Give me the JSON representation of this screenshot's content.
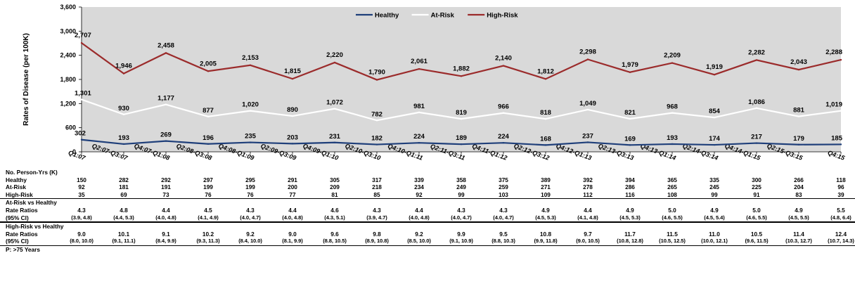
{
  "chart_data": {
    "type": "line",
    "ylabel": "Rates of Disease (per 100K)",
    "ylim": [
      0,
      3600
    ],
    "yticks": [
      "0",
      "600",
      "1,200",
      "1,800",
      "2,400",
      "3,000",
      "3,600"
    ],
    "grid": false,
    "legend_position": "top-center",
    "categories": [
      "Q1:07",
      "Q2:07-Q3:07",
      "Q4:07-Q1:08",
      "Q2:08-Q3:08",
      "Q4:08-Q1:09",
      "Q2:09-Q3:09",
      "Q4:09-Q1:10",
      "Q2:10-Q3:10",
      "Q4:10-Q1:11",
      "Q2:11-Q3:11",
      "Q4:11-Q1:12",
      "Q2:12-Q3:12",
      "Q4:12-Q1:13",
      "Q2:13-Q3:13",
      "Q4:13-Q1:14",
      "Q2:14-Q3:14",
      "Q4:14-Q1:15",
      "Q2:15-Q3:15",
      "Q4:15"
    ],
    "series": [
      {
        "name": "Healthy",
        "color": "#1f3f7a",
        "values": [
          302,
          193,
          269,
          196,
          235,
          203,
          231,
          182,
          224,
          189,
          224,
          168,
          237,
          169,
          193,
          174,
          217,
          179,
          185
        ]
      },
      {
        "name": "At-Risk",
        "color": "#ffffff",
        "values": [
          1301,
          930,
          1177,
          877,
          1020,
          890,
          1072,
          782,
          981,
          819,
          966,
          818,
          1049,
          821,
          968,
          854,
          1086,
          881,
          1019
        ]
      },
      {
        "name": "High-Risk",
        "color": "#9b2b2b",
        "values": [
          2707,
          1946,
          2458,
          2005,
          2153,
          1815,
          2220,
          1790,
          2061,
          1882,
          2140,
          1812,
          2298,
          1979,
          2209,
          1919,
          2282,
          2043,
          2288
        ]
      }
    ],
    "data_labels": {
      "Healthy": [
        "302",
        "193",
        "269",
        "196",
        "235",
        "203",
        "231",
        "182",
        "224",
        "189",
        "224",
        "168",
        "237",
        "169",
        "193",
        "174",
        "217",
        "179",
        "185"
      ],
      "At-Risk": [
        "1,301",
        "930",
        "1,177",
        "877",
        "1,020",
        "890",
        "1,072",
        "782",
        "981",
        "819",
        "966",
        "818",
        "1,049",
        "821",
        "968",
        "854",
        "1,086",
        "881",
        "1,019"
      ],
      "High-Risk": [
        "2,707",
        "1,946",
        "2,458",
        "2,005",
        "2,153",
        "1,815",
        "2,220",
        "1,790",
        "2,061",
        "1,882",
        "2,140",
        "1,812",
        "2,298",
        "1,979",
        "2,209",
        "1,919",
        "2,282",
        "2,043",
        "2,288"
      ]
    },
    "plot_background": "#d9d9d9"
  },
  "table": {
    "rows": [
      {
        "label": "No. Person-Yrs (K)",
        "cells": [],
        "style": "header"
      },
      {
        "label": "Healthy",
        "cells": [
          "150",
          "282",
          "292",
          "297",
          "295",
          "291",
          "305",
          "317",
          "339",
          "358",
          "375",
          "389",
          "392",
          "394",
          "365",
          "335",
          "300",
          "266",
          "118"
        ]
      },
      {
        "label": "At-Risk",
        "cells": [
          "92",
          "181",
          "191",
          "199",
          "199",
          "200",
          "209",
          "218",
          "234",
          "249",
          "259",
          "271",
          "278",
          "286",
          "265",
          "245",
          "225",
          "204",
          "96"
        ]
      },
      {
        "label": "High-Risk",
        "cells": [
          "35",
          "69",
          "73",
          "76",
          "76",
          "77",
          "81",
          "85",
          "92",
          "99",
          "103",
          "109",
          "112",
          "116",
          "108",
          "99",
          "91",
          "83",
          "39"
        ]
      },
      {
        "label": "At-Risk vs Healthy",
        "cells": [],
        "style": "section-top"
      },
      {
        "label": "Rate Ratios",
        "cells": [
          "4.3",
          "4.8",
          "4.4",
          "4.5",
          "4.3",
          "4.4",
          "4.6",
          "4.3",
          "4.4",
          "4.3",
          "4.3",
          "4.9",
          "4.4",
          "4.9",
          "5.0",
          "4.9",
          "5.0",
          "4.9",
          "5.5"
        ]
      },
      {
        "label": "(95% CI)",
        "cells": [
          "(3.9, 4.8)",
          "(4.4, 5.3)",
          "(4.0, 4.8)",
          "(4.1, 4.9)",
          "(4.0, 4.7)",
          "(4.0, 4.8)",
          "(4.3, 5.1)",
          "(3.9, 4.7)",
          "(4.0, 4.8)",
          "(4.0, 4.7)",
          "(4.0, 4.7)",
          "(4.5, 5.3)",
          "(4.1, 4.8)",
          "(4.5, 5.3)",
          "(4.6, 5.5)",
          "(4.5, 5.4)",
          "(4.6, 5.5)",
          "(4.5, 5.5)",
          "(4.8, 6.4)"
        ],
        "style": "ci-bottom"
      },
      {
        "label": "High-Risk vs Healthy",
        "cells": [],
        "style": "section-top"
      },
      {
        "label": "Rate Ratios",
        "cells": [
          "9.0",
          "10.1",
          "9.1",
          "10.2",
          "9.2",
          "9.0",
          "9.6",
          "9.8",
          "9.2",
          "9.9",
          "9.5",
          "10.8",
          "9.7",
          "11.7",
          "11.5",
          "11.0",
          "10.5",
          "11.4",
          "12.4"
        ]
      },
      {
        "label": "(95% CI)",
        "cells": [
          "(8.0, 10.0)",
          "(9.1, 11.1)",
          "(8.4, 9.9)",
          "(9.3, 11.3)",
          "(8.4, 10.0)",
          "(8.1, 9.9)",
          "(8.8, 10.5)",
          "(8.9, 10.8)",
          "(8.5, 10.0)",
          "(9.1, 10.9)",
          "(8.8, 10.3)",
          "(9.9, 11.8)",
          "(9.0, 10.5)",
          "(10.8, 12.8)",
          "(10.5, 12.5)",
          "(10.0, 12.1)",
          "(9.6, 11.5)",
          "(10.3, 12.7)",
          "(10.7, 14.3)"
        ],
        "style": "ci-bottom"
      },
      {
        "label": "P: >75 Years",
        "cells": [],
        "style": "footer"
      }
    ]
  }
}
